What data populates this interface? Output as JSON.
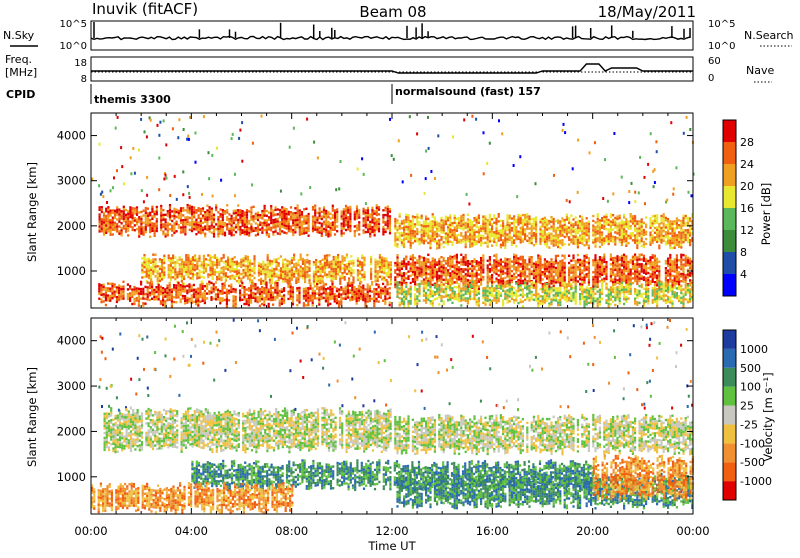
{
  "header": {
    "station": "Inuvik (fitACF)",
    "beam": "Beam 08",
    "date": "18/May/2011"
  },
  "summary": {
    "nsky_label": "N.Sky",
    "nsky_ticks": [
      "10^5",
      "10^0"
    ],
    "nsearch_label": "N.Search",
    "nsearch_ticks": [
      "10^5",
      "10^0"
    ],
    "freq_label": "Freq.",
    "freq_unit": "[MHz]",
    "freq_ticks": [
      "18",
      "8"
    ],
    "nave_label": "Nave",
    "nave_ticks": [
      "60",
      "0"
    ],
    "cpid_label": "CPID",
    "cpid_segments": [
      {
        "label": "themis 3300",
        "start_hour": 0
      },
      {
        "label": "normalsound (fast) 157",
        "start_hour": 12
      }
    ]
  },
  "chart_data": [
    {
      "type": "heatmap",
      "name": "power-panel",
      "ylabel": "Slant Range [km]",
      "ylim": [
        180,
        4500
      ],
      "yticks": [
        "4000",
        "3000",
        "2000",
        "1000"
      ],
      "xlim": [
        0,
        24
      ],
      "colorbar_label": "Power [dB]",
      "colorbar_ticks": [
        "28",
        "24",
        "20",
        "16",
        "12",
        "8",
        "4"
      ],
      "colors": [
        "#0000ff",
        "#1e4ea8",
        "#3c8c3c",
        "#5ab85a",
        "#e8e830",
        "#f0a020",
        "#f06010",
        "#e00000"
      ],
      "bands": [
        {
          "x": [
            0.3,
            12.0
          ],
          "y": [
            1850,
            2400
          ],
          "level": 6
        },
        {
          "x": [
            12.0,
            24.0
          ],
          "y": [
            1600,
            2200
          ],
          "level": 5
        },
        {
          "x": [
            2.0,
            12.0
          ],
          "y": [
            800,
            1300
          ],
          "level": 5
        },
        {
          "x": [
            12.0,
            24.0
          ],
          "y": [
            700,
            1300
          ],
          "level": 6
        },
        {
          "x": [
            0.2,
            12.0
          ],
          "y": [
            300,
            700
          ],
          "level": 6
        },
        {
          "x": [
            12.0,
            24.0
          ],
          "y": [
            300,
            700
          ],
          "level": 4
        }
      ]
    },
    {
      "type": "heatmap",
      "name": "velocity-panel",
      "ylabel": "Slant Range [km]",
      "ylim": [
        180,
        4500
      ],
      "yticks": [
        "4000",
        "3000",
        "2000",
        "1000"
      ],
      "xlim": [
        0,
        24
      ],
      "colorbar_label": "Velocity [m s⁻¹]",
      "colorbar_ticks": [
        "1000",
        "500",
        "100",
        "25",
        "-25",
        "-100",
        "-500",
        "-1000"
      ],
      "colors": [
        "#1e3ca0",
        "#2a6ab0",
        "#3c8c5a",
        "#60c040",
        "#c8c8c0",
        "#f0c040",
        "#f09030",
        "#f06010",
        "#e00000"
      ],
      "bands": [
        {
          "x": [
            0.5,
            12.0
          ],
          "y": [
            1650,
            2450
          ],
          "level": 4
        },
        {
          "x": [
            12.0,
            24.0
          ],
          "y": [
            1600,
            2300
          ],
          "level": 4
        },
        {
          "x": [
            4.0,
            20.0
          ],
          "y": [
            800,
            1300
          ],
          "level": 2
        },
        {
          "x": [
            12.0,
            24.0
          ],
          "y": [
            400,
            1000
          ],
          "level": 2
        },
        {
          "x": [
            0.0,
            8.0
          ],
          "y": [
            300,
            800
          ],
          "level": 6
        },
        {
          "x": [
            20.0,
            24.0
          ],
          "y": [
            600,
            1400
          ],
          "level": 6
        }
      ]
    }
  ],
  "xaxis": {
    "ticks": [
      "00:00",
      "04:00",
      "08:00",
      "12:00",
      "16:00",
      "20:00",
      "00:00"
    ],
    "label": "Time UT"
  }
}
